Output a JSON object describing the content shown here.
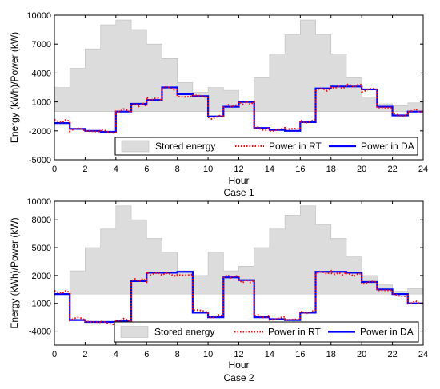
{
  "chart_data": [
    {
      "type": "area",
      "caption": "Case 1",
      "xlabel": "Hour",
      "ylabel": "Energy (kWh)/Power (kW)",
      "xlim": [
        0,
        24
      ],
      "ylim": [
        -5000,
        10000
      ],
      "xticks": [
        "0",
        "2",
        "4",
        "6",
        "8",
        "10",
        "12",
        "14",
        "16",
        "18",
        "20",
        "22",
        "24"
      ],
      "yticks": [
        "-5000",
        "-2000",
        "1000",
        "4000",
        "7000",
        "10000"
      ],
      "ytick_values": [
        -5000,
        -2000,
        1000,
        4000,
        7000,
        10000
      ],
      "grid": false,
      "legend": {
        "placement": "bottom-center",
        "entries": [
          "Stored energy",
          "Power in RT",
          "Power in DA"
        ]
      },
      "series": [
        {
          "name": "Stored energy",
          "style": "area",
          "color": "#dcdcdc",
          "values": [
            2500,
            4500,
            6500,
            9000,
            9500,
            8500,
            7000,
            5500,
            3000,
            2000,
            2500,
            2200,
            1000,
            3500,
            6000,
            8000,
            9500,
            8000,
            6000,
            3500,
            1500,
            800,
            600,
            900
          ]
        },
        {
          "name": "Power in DA",
          "style": "step",
          "color": "#0000ff",
          "values": [
            -1200,
            -1800,
            -2000,
            -2100,
            0,
            800,
            1200,
            2500,
            1800,
            1600,
            -500,
            500,
            1000,
            -1700,
            -1900,
            -2000,
            -1100,
            2400,
            2600,
            2600,
            2300,
            500,
            -400,
            0
          ]
        },
        {
          "name": "Power in RT",
          "style": "dotted",
          "color": "#ff0000",
          "values": [
            -1000,
            -1900,
            -1950,
            -2050,
            100,
            700,
            1300,
            2400,
            1700,
            1500,
            -600,
            600,
            900,
            -1800,
            -1850,
            -1950,
            -1000,
            2300,
            2500,
            2700,
            2200,
            400,
            -300,
            100
          ]
        }
      ]
    },
    {
      "type": "area",
      "caption": "Case 2",
      "xlabel": "Hour",
      "ylabel": "Energy (kWh)/Power (kW)",
      "xlim": [
        0,
        24
      ],
      "ylim": [
        -5500,
        10000
      ],
      "xticks": [
        "0",
        "2",
        "4",
        "6",
        "8",
        "10",
        "12",
        "14",
        "16",
        "18",
        "20",
        "22",
        "24"
      ],
      "yticks": [
        "-4000",
        "-1000",
        "2000",
        "5000",
        "8000",
        "10000"
      ],
      "ytick_values": [
        -4000,
        -1000,
        2000,
        5000,
        8000,
        10000
      ],
      "grid": false,
      "legend": {
        "placement": "bottom-center",
        "entries": [
          "Stored energy",
          "Power in RT",
          "Power in DA"
        ]
      },
      "series": [
        {
          "name": "Stored energy",
          "style": "area",
          "color": "#dcdcdc",
          "values": [
            0,
            2500,
            5000,
            7000,
            9500,
            8000,
            6000,
            4500,
            2500,
            2000,
            4500,
            2500,
            3000,
            5000,
            7000,
            8500,
            9500,
            7500,
            6000,
            4000,
            2000,
            1000,
            300,
            600
          ]
        },
        {
          "name": "Power in DA",
          "style": "step",
          "color": "#0000ff",
          "values": [
            0,
            -2800,
            -3000,
            -3000,
            -2900,
            1400,
            2300,
            2300,
            2400,
            -2000,
            -2500,
            1800,
            1500,
            -2500,
            -2700,
            -2800,
            -2000,
            2400,
            2400,
            2300,
            1300,
            500,
            0,
            -1000
          ]
        },
        {
          "name": "Power in RT",
          "style": "dotted",
          "color": "#ff0000",
          "values": [
            200,
            -2700,
            -2900,
            -3100,
            -2800,
            1500,
            2200,
            2100,
            2200,
            -1900,
            -2400,
            1900,
            1400,
            -2400,
            -2600,
            -2900,
            -1900,
            2300,
            2200,
            2100,
            1200,
            400,
            -100,
            -900
          ]
        }
      ]
    }
  ]
}
